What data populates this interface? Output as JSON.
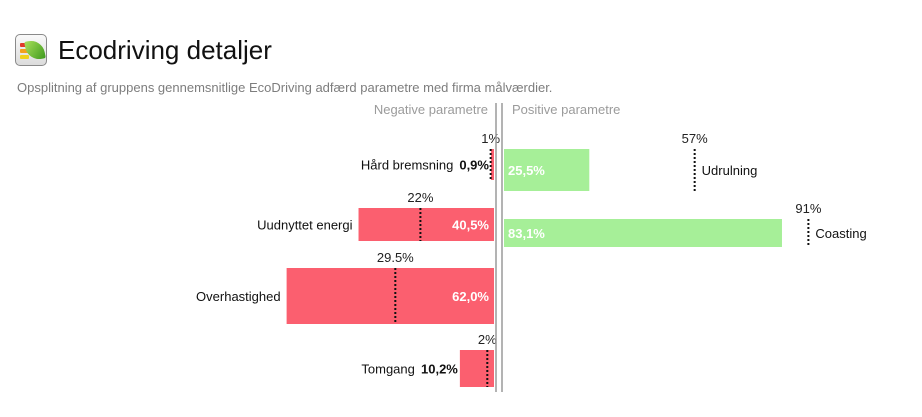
{
  "header": {
    "title": "Ecodriving detaljer",
    "subtitle": "Opsplitning af gruppens gennemsnitlige EcoDriving adfærd parametre med firma målværdier.",
    "logo_icon": "ecodriving-leaf-icon"
  },
  "chart_data": {
    "type": "bar",
    "orientation": "horizontal-diverging",
    "negative_title": "Negative parametre",
    "positive_title": "Positive parametre",
    "negative": [
      {
        "label": "Hård bremsning",
        "value": 0.9,
        "value_label": "0,9%",
        "target": 1,
        "target_label": "1%"
      },
      {
        "label": "Uudnyttet energi",
        "value": 40.5,
        "value_label": "40,5%",
        "target": 22,
        "target_label": "22%"
      },
      {
        "label": "Overhastighed",
        "value": 62.0,
        "value_label": "62,0%",
        "target": 29.5,
        "target_label": "29.5%"
      },
      {
        "label": "Tomgang",
        "value": 10.2,
        "value_label": "10,2%",
        "target": 2,
        "target_label": "2%"
      }
    ],
    "positive": [
      {
        "label": "Udrulning",
        "value": 25.5,
        "value_label": "25,5%",
        "target": 57,
        "target_label": "57%"
      },
      {
        "label": "Coasting",
        "value": 83.1,
        "value_label": "83,1%",
        "target": 91,
        "target_label": "91%"
      }
    ],
    "colors": {
      "negative": "#fb5f6f",
      "positive": "#a6ef98",
      "axis": "#9a9a9a",
      "panel_title": "#9b9b9b"
    }
  }
}
